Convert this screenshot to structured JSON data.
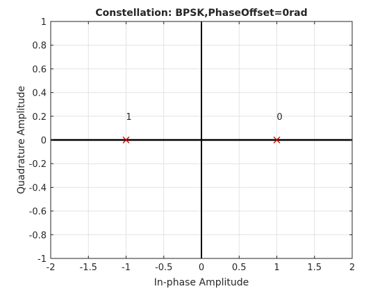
{
  "chart_data": {
    "type": "scatter",
    "title": "Constellation: BPSK,PhaseOffset=0rad",
    "xlabel": "In-phase Amplitude",
    "ylabel": "Quadrature Amplitude",
    "xlim": [
      -2,
      2
    ],
    "ylim": [
      -1,
      1
    ],
    "xticks": [
      -2,
      -1.5,
      -1,
      -0.5,
      0,
      0.5,
      1,
      1.5,
      2
    ],
    "xtick_labels": [
      "-2",
      "-1.5",
      "-1",
      "-0.5",
      "0",
      "0.5",
      "1",
      "1.5",
      "2"
    ],
    "yticks": [
      -1,
      -0.8,
      -0.6,
      -0.4,
      -0.2,
      0,
      0.2,
      0.4,
      0.6,
      0.8,
      1
    ],
    "ytick_labels": [
      "-1",
      "-0.8",
      "-0.6",
      "-0.4",
      "-0.2",
      "0",
      "0.2",
      "0.4",
      "0.6",
      "0.8",
      "1"
    ],
    "grid": true,
    "marker": "x",
    "marker_color": "#d00000",
    "points": [
      {
        "x": -1,
        "y": 0,
        "label": "1"
      },
      {
        "x": 1,
        "y": 0,
        "label": "0"
      }
    ]
  }
}
